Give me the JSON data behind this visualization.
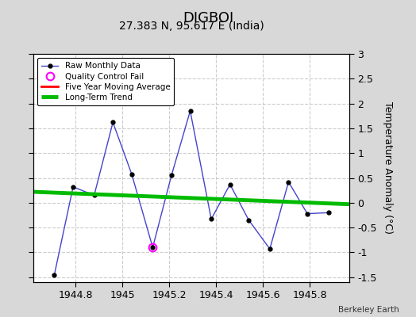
{
  "title": "DIGBOI",
  "subtitle": "27.383 N, 95.617 E (India)",
  "credit": "Berkeley Earth",
  "ylabel": "Temperature Anomaly (°C)",
  "ylim": [
    -1.6,
    3.0
  ],
  "xlim": [
    1944.62,
    1945.97
  ],
  "xticks": [
    1944.8,
    1945.0,
    1945.2,
    1945.4,
    1945.6,
    1945.8
  ],
  "yticks": [
    -1.5,
    -1.0,
    -0.5,
    0.0,
    0.5,
    1.0,
    1.5,
    2.0,
    2.5,
    3.0
  ],
  "raw_x": [
    1944.71,
    1944.79,
    1944.88,
    1944.96,
    1945.04,
    1945.13,
    1945.21,
    1945.29,
    1945.38,
    1945.46,
    1945.54,
    1945.63,
    1945.71,
    1945.79,
    1945.88
  ],
  "raw_y": [
    -1.45,
    0.32,
    0.15,
    1.62,
    0.58,
    -0.9,
    0.55,
    1.85,
    -0.33,
    0.37,
    -0.35,
    -0.93,
    0.42,
    -0.22,
    -0.2
  ],
  "qc_fail_x": [
    1945.13
  ],
  "qc_fail_y": [
    -0.9
  ],
  "trend_x": [
    1944.62,
    1945.97
  ],
  "trend_y": [
    0.22,
    -0.03
  ],
  "bg_color": "#d8d8d8",
  "plot_bg_color": "#ffffff",
  "raw_line_color": "#4444cc",
  "raw_marker_color": "#000000",
  "qc_marker_color": "#ff00ff",
  "trend_color": "#00bb00",
  "moving_avg_color": "#ff0000",
  "title_fontsize": 13,
  "subtitle_fontsize": 10,
  "label_fontsize": 9,
  "tick_fontsize": 9,
  "grid_color": "#cccccc",
  "grid_style": "--"
}
